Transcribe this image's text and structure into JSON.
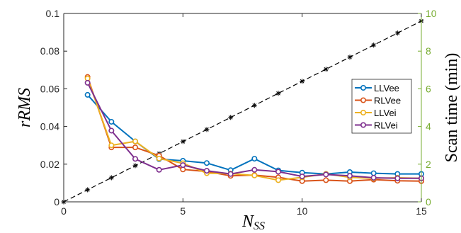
{
  "chart_data": {
    "type": "line",
    "xlabel": "N",
    "xlabel_sub": "SS",
    "ylabel": "rRMS",
    "ylabel_right": "Scan time (min)",
    "xlim": [
      0,
      15
    ],
    "ylim": [
      0,
      0.1
    ],
    "ylim_right": [
      0,
      10
    ],
    "x_ticks": [
      "0",
      "5",
      "10",
      "15"
    ],
    "y_ticks": [
      "0",
      "0.02",
      "0.04",
      "0.06",
      "0.08",
      "0.1"
    ],
    "y_ticks_right": [
      "0",
      "2",
      "4",
      "6",
      "8",
      "10"
    ],
    "legend_position": "right",
    "right_axis_color": "#77ac30",
    "x": [
      1,
      2,
      3,
      4,
      5,
      6,
      7,
      8,
      9,
      10,
      11,
      12,
      13,
      14,
      15
    ],
    "series": [
      {
        "name": "LLVee",
        "color": "#0072bd",
        "values": [
          0.0568,
          0.0425,
          0.0321,
          0.0227,
          0.0218,
          0.0206,
          0.0168,
          0.0229,
          0.0167,
          0.0155,
          0.0148,
          0.0158,
          0.0152,
          0.0148,
          0.0148
        ]
      },
      {
        "name": "RLVee",
        "color": "#d95319",
        "values": [
          0.0663,
          0.0289,
          0.0289,
          0.0245,
          0.0172,
          0.0161,
          0.0138,
          0.0142,
          0.013,
          0.011,
          0.0115,
          0.011,
          0.0118,
          0.0112,
          0.011
        ]
      },
      {
        "name": "LLVei",
        "color": "#edb120",
        "values": [
          0.0655,
          0.03,
          0.0321,
          0.023,
          0.0205,
          0.0152,
          0.015,
          0.014,
          0.0115,
          0.013,
          0.0148,
          0.013,
          0.0125,
          0.0128,
          0.0125
        ]
      },
      {
        "name": "RLVei",
        "color": "#7e2f8e",
        "values": [
          0.0632,
          0.0378,
          0.0228,
          0.017,
          0.0195,
          0.0165,
          0.0148,
          0.017,
          0.016,
          0.0135,
          0.0145,
          0.0138,
          0.0128,
          0.0125,
          0.0125
        ]
      }
    ],
    "scan_time": {
      "axis": "right",
      "x": [
        0,
        1,
        2,
        3,
        4,
        5,
        6,
        7,
        8,
        9,
        10,
        11,
        12,
        13,
        14,
        15
      ],
      "values": [
        0,
        0.64,
        1.28,
        1.92,
        2.56,
        3.2,
        3.84,
        4.48,
        5.12,
        5.76,
        6.4,
        7.04,
        7.68,
        8.32,
        8.96,
        9.6
      ]
    }
  }
}
